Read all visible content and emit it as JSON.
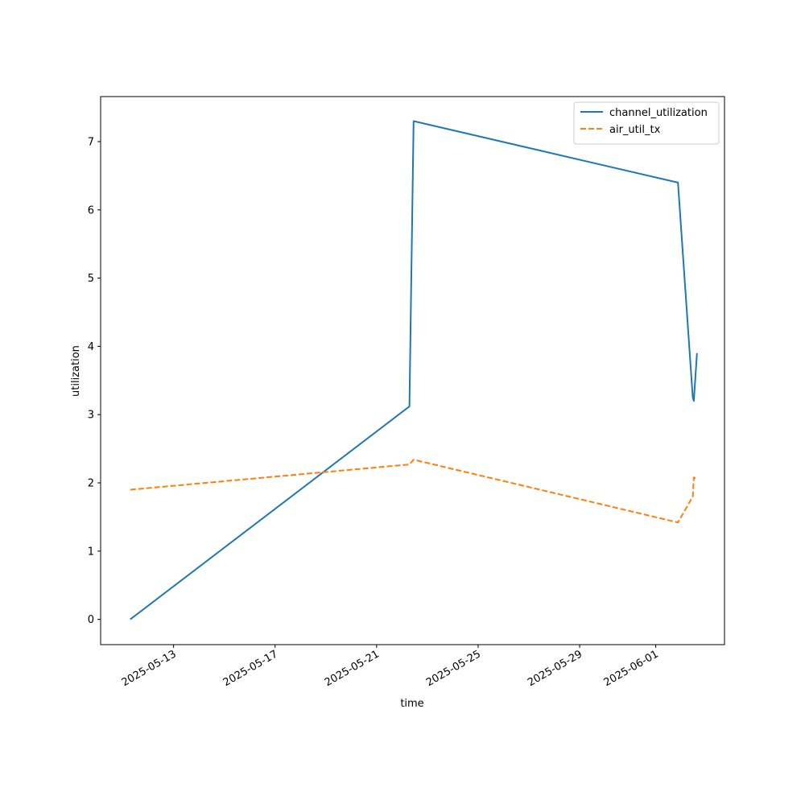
{
  "chart_data": {
    "type": "line",
    "title": "",
    "xlabel": "time",
    "ylabel": "utilization",
    "x_tick_labels": [
      "2025-05-13",
      "2025-05-17",
      "2025-05-21",
      "2025-05-25",
      "2025-05-29",
      "2025-06-01"
    ],
    "x_tick_dates": [
      "2025-05-13",
      "2025-05-17",
      "2025-05-21",
      "2025-05-25",
      "2025-05-29",
      "2025-06-01"
    ],
    "xlim": [
      "2025-05-10T03:00",
      "2025-06-03T17:00"
    ],
    "y_ticks": [
      0,
      1,
      2,
      3,
      4,
      5,
      6,
      7
    ],
    "ylim": [
      -0.37,
      7.66
    ],
    "grid": false,
    "legend_position": "top-right",
    "series": [
      {
        "name": "channel_utilization",
        "color": "#1f77b4",
        "style": "solid",
        "points": [
          {
            "x": "2025-05-11T07:00",
            "y": 0.0
          },
          {
            "x": "2025-05-22T07:00",
            "y": 3.12
          },
          {
            "x": "2025-05-22T11:00",
            "y": 7.3
          },
          {
            "x": "2025-06-01T21:00",
            "y": 6.4
          },
          {
            "x": "2025-06-02T11:00",
            "y": 3.25
          },
          {
            "x": "2025-06-02T12:00",
            "y": 3.2
          },
          {
            "x": "2025-06-02T15:00",
            "y": 3.9
          }
        ]
      },
      {
        "name": "air_util_tx",
        "color": "#ff7f0e",
        "style": "dashed",
        "points": [
          {
            "x": "2025-05-11T07:00",
            "y": 1.9
          },
          {
            "x": "2025-05-22T07:00",
            "y": 2.27
          },
          {
            "x": "2025-05-22T11:00",
            "y": 2.34
          },
          {
            "x": "2025-06-01T21:00",
            "y": 1.42
          },
          {
            "x": "2025-06-02T11:00",
            "y": 1.8
          },
          {
            "x": "2025-06-02T12:00",
            "y": 2.08
          },
          {
            "x": "2025-06-02T15:00",
            "y": 2.05
          }
        ]
      }
    ]
  }
}
